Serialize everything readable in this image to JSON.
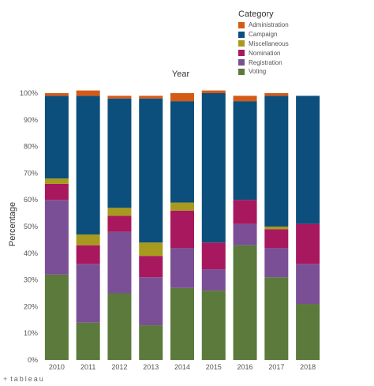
{
  "legend": {
    "title": "Category"
  },
  "branding": {
    "mark": "+",
    "text": "tableau",
    "icon": "tableau-plus-icon"
  },
  "chart_data": {
    "type": "bar",
    "stacked": true,
    "title": "Year",
    "xlabel": "",
    "ylabel": "Percentage",
    "ylim": [
      0,
      100
    ],
    "yticks": [
      0,
      10,
      20,
      30,
      40,
      50,
      60,
      70,
      80,
      90,
      100
    ],
    "ytick_labels": [
      "0%",
      "10%",
      "20%",
      "30%",
      "40%",
      "50%",
      "60%",
      "70%",
      "80%",
      "90%",
      "100%"
    ],
    "grid": false,
    "legend_position": "top-right",
    "categories": [
      "2010",
      "2011",
      "2012",
      "2013",
      "2014",
      "2015",
      "2016",
      "2017",
      "2018"
    ],
    "series": [
      {
        "name": "Voting",
        "color": "#5b7a3b",
        "values": [
          32,
          14,
          25,
          13,
          27,
          26,
          43,
          31,
          21
        ]
      },
      {
        "name": "Registration",
        "color": "#7b4f96",
        "values": [
          28,
          22,
          23,
          18,
          15,
          8,
          8,
          11,
          15
        ]
      },
      {
        "name": "Nomination",
        "color": "#a8185e",
        "values": [
          6,
          7,
          6,
          8,
          14,
          10,
          9,
          7,
          15
        ]
      },
      {
        "name": "Miscellaneous",
        "color": "#a89a1e",
        "values": [
          2,
          4,
          3,
          5,
          3,
          0,
          0,
          1,
          0
        ]
      },
      {
        "name": "Campaign",
        "color": "#0c4f7c",
        "values": [
          31,
          52,
          41,
          54,
          38,
          56,
          37,
          49,
          48
        ]
      },
      {
        "name": "Administration",
        "color": "#d45a16",
        "values": [
          1,
          2,
          1,
          1,
          3,
          1,
          2,
          1,
          0
        ]
      }
    ],
    "legend_order": [
      "Administration",
      "Campaign",
      "Miscellaneous",
      "Nomination",
      "Registration",
      "Voting"
    ]
  }
}
